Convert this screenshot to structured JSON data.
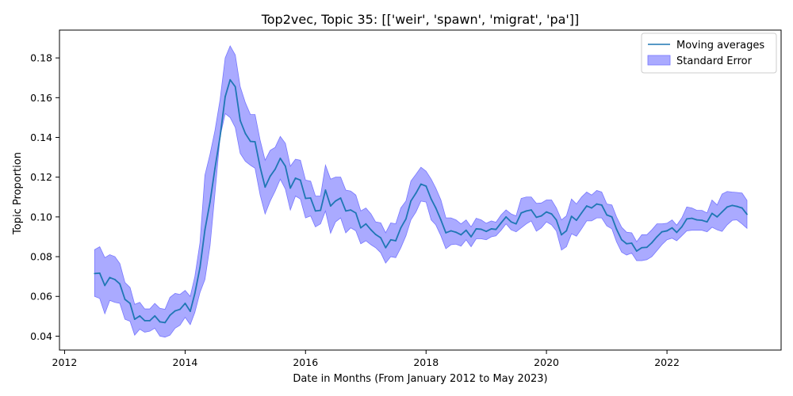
{
  "chart_data": {
    "type": "line",
    "title": "Top2vec, Topic 35: [['weir', 'spawn', 'migrat', 'pa']]",
    "xlabel": "Date in Months (From January 2012 to May 2023)",
    "ylabel": "Topic Proportion",
    "xlim": [
      "2011-12-01",
      "2023-11-24"
    ],
    "ylim": [
      0.033,
      0.194
    ],
    "x_ticks": [
      "2012",
      "2014",
      "2016",
      "2018",
      "2020",
      "2022"
    ],
    "y_ticks": [
      "0.04",
      "0.06",
      "0.08",
      "0.10",
      "0.12",
      "0.14",
      "0.16",
      "0.18"
    ],
    "legend": {
      "position": "top-right",
      "entries": [
        "Moving averages",
        "Standard Error"
      ]
    },
    "colors": {
      "line": "#1f77b4",
      "band": "#aaaaff",
      "band_edge": "#7777ff"
    },
    "x": [
      "2012-07",
      "2012-08",
      "2012-09",
      "2012-10",
      "2012-11",
      "2012-12",
      "2013-01",
      "2013-02",
      "2013-03",
      "2013-04",
      "2013-05",
      "2013-06",
      "2013-07",
      "2013-08",
      "2013-09",
      "2013-10",
      "2013-11",
      "2013-12",
      "2014-01",
      "2014-02",
      "2014-03",
      "2014-04",
      "2014-05",
      "2014-06",
      "2014-07",
      "2014-08",
      "2014-09",
      "2014-10",
      "2014-11",
      "2014-12",
      "2015-01",
      "2015-02",
      "2015-03",
      "2015-04",
      "2015-05",
      "2015-06",
      "2015-07",
      "2015-08",
      "2015-09",
      "2015-10",
      "2015-11",
      "2015-12",
      "2016-01",
      "2016-02",
      "2016-03",
      "2016-04",
      "2016-05",
      "2016-06",
      "2016-07",
      "2016-08",
      "2016-09",
      "2016-10",
      "2016-11",
      "2016-12",
      "2017-01",
      "2017-02",
      "2017-03",
      "2017-04",
      "2017-05",
      "2017-06",
      "2017-07",
      "2017-08",
      "2017-09",
      "2017-10",
      "2017-11",
      "2017-12",
      "2018-01",
      "2018-02",
      "2018-03",
      "2018-04",
      "2018-05",
      "2018-06",
      "2018-07",
      "2018-08",
      "2018-09",
      "2018-10",
      "2018-11",
      "2018-12",
      "2019-01",
      "2019-02",
      "2019-03",
      "2019-04",
      "2019-05",
      "2019-06",
      "2019-07",
      "2019-08",
      "2019-09",
      "2019-10",
      "2019-11",
      "2019-12",
      "2020-01",
      "2020-02",
      "2020-03",
      "2020-04",
      "2020-05",
      "2020-06",
      "2020-07",
      "2020-08",
      "2020-09",
      "2020-10",
      "2020-11",
      "2020-12",
      "2021-01",
      "2021-02",
      "2021-03",
      "2021-04",
      "2021-05",
      "2021-06",
      "2021-07",
      "2021-08",
      "2021-09",
      "2021-10",
      "2021-11",
      "2021-12",
      "2022-01",
      "2022-02",
      "2022-03",
      "2022-04",
      "2022-05",
      "2022-06",
      "2022-07",
      "2022-08",
      "2022-09",
      "2022-10",
      "2022-11",
      "2022-12",
      "2023-01",
      "2023-02",
      "2023-03",
      "2023-04",
      "2023-05"
    ],
    "series": [
      {
        "name": "Moving averages",
        "values": [
          0.0715,
          0.0717,
          0.0655,
          0.0695,
          0.0685,
          0.0663,
          0.0585,
          0.0565,
          0.0485,
          0.0502,
          0.0478,
          0.0478,
          0.0502,
          0.0472,
          0.0468,
          0.0505,
          0.0527,
          0.0535,
          0.0565,
          0.0525,
          0.0615,
          0.0745,
          0.0935,
          0.1075,
          0.1245,
          0.1405,
          0.1605,
          0.169,
          0.1655,
          0.1485,
          0.142,
          0.138,
          0.1378,
          0.125,
          0.115,
          0.1205,
          0.124,
          0.1295,
          0.1255,
          0.1145,
          0.1195,
          0.1185,
          0.1093,
          0.1095,
          0.103,
          0.1033,
          0.1135,
          0.1055,
          0.108,
          0.1095,
          0.103,
          0.1035,
          0.102,
          0.0945,
          0.0965,
          0.0935,
          0.0912,
          0.0895,
          0.0845,
          0.0885,
          0.088,
          0.0945,
          0.099,
          0.108,
          0.112,
          0.1165,
          0.1155,
          0.109,
          0.1045,
          0.0985,
          0.092,
          0.093,
          0.0923,
          0.091,
          0.0933,
          0.09,
          0.094,
          0.0938,
          0.0927,
          0.094,
          0.0937,
          0.097,
          0.1,
          0.0975,
          0.0965,
          0.102,
          0.103,
          0.1035,
          0.0998,
          0.1005,
          0.1025,
          0.1015,
          0.0985,
          0.091,
          0.093,
          0.1003,
          0.0983,
          0.102,
          0.1055,
          0.1045,
          0.1065,
          0.106,
          0.101,
          0.1,
          0.0938,
          0.0885,
          0.0865,
          0.0868,
          0.0828,
          0.0845,
          0.0847,
          0.087,
          0.09,
          0.0925,
          0.093,
          0.0945,
          0.0922,
          0.095,
          0.099,
          0.0993,
          0.0985,
          0.0983,
          0.0975,
          0.1018,
          0.1,
          0.1025,
          0.105,
          0.1058,
          0.1053,
          0.1045,
          0.1013
        ],
        "lower": [
          0.06,
          0.059,
          0.0513,
          0.058,
          0.057,
          0.0565,
          0.0485,
          0.0475,
          0.0405,
          0.0435,
          0.042,
          0.0425,
          0.044,
          0.04,
          0.0395,
          0.0405,
          0.044,
          0.0455,
          0.0495,
          0.0458,
          0.052,
          0.062,
          0.0685,
          0.0855,
          0.112,
          0.1405,
          0.152,
          0.15,
          0.145,
          0.132,
          0.128,
          0.126,
          0.1245,
          0.111,
          0.1015,
          0.108,
          0.113,
          0.119,
          0.114,
          0.1035,
          0.1105,
          0.109,
          0.0995,
          0.1005,
          0.095,
          0.0965,
          0.103,
          0.0918,
          0.0975,
          0.0995,
          0.092,
          0.0945,
          0.093,
          0.0865,
          0.088,
          0.086,
          0.0845,
          0.082,
          0.0768,
          0.08,
          0.0795,
          0.0845,
          0.0905,
          0.0985,
          0.1025,
          0.108,
          0.1075,
          0.0985,
          0.096,
          0.0905,
          0.084,
          0.086,
          0.0863,
          0.0853,
          0.0885,
          0.085,
          0.089,
          0.089,
          0.0885,
          0.09,
          0.0905,
          0.0933,
          0.0965,
          0.0935,
          0.0925,
          0.0945,
          0.0965,
          0.098,
          0.0928,
          0.0945,
          0.0975,
          0.096,
          0.093,
          0.0833,
          0.085,
          0.0915,
          0.0903,
          0.094,
          0.098,
          0.098,
          0.0995,
          0.0995,
          0.0955,
          0.094,
          0.0875,
          0.0823,
          0.0808,
          0.0818,
          0.078,
          0.078,
          0.0785,
          0.08,
          0.083,
          0.086,
          0.0885,
          0.0893,
          0.088,
          0.0905,
          0.093,
          0.0933,
          0.0933,
          0.0933,
          0.0925,
          0.0948,
          0.0935,
          0.0927,
          0.096,
          0.0983,
          0.0985,
          0.0965,
          0.0943
        ],
        "upper": [
          0.0835,
          0.085,
          0.0795,
          0.081,
          0.08,
          0.0765,
          0.067,
          0.0645,
          0.056,
          0.057,
          0.0537,
          0.0537,
          0.0565,
          0.054,
          0.0535,
          0.0595,
          0.0615,
          0.061,
          0.063,
          0.06,
          0.07,
          0.087,
          0.121,
          0.1315,
          0.1435,
          0.159,
          0.18,
          0.186,
          0.1815,
          0.1655,
          0.1575,
          0.1515,
          0.1515,
          0.1385,
          0.1285,
          0.1335,
          0.135,
          0.1405,
          0.137,
          0.1255,
          0.129,
          0.1285,
          0.1185,
          0.118,
          0.1105,
          0.1105,
          0.126,
          0.119,
          0.12,
          0.12,
          0.1135,
          0.113,
          0.111,
          0.103,
          0.1045,
          0.1015,
          0.0975,
          0.097,
          0.092,
          0.097,
          0.0965,
          0.1045,
          0.108,
          0.118,
          0.1215,
          0.125,
          0.123,
          0.119,
          0.1145,
          0.1085,
          0.0995,
          0.0995,
          0.0985,
          0.0965,
          0.0985,
          0.095,
          0.0993,
          0.0985,
          0.0968,
          0.098,
          0.0973,
          0.101,
          0.1035,
          0.1015,
          0.1005,
          0.1093,
          0.11,
          0.11,
          0.1068,
          0.107,
          0.1085,
          0.1085,
          0.1045,
          0.0985,
          0.1005,
          0.109,
          0.1065,
          0.11,
          0.1125,
          0.111,
          0.1133,
          0.1125,
          0.1065,
          0.106,
          0.1,
          0.0948,
          0.0923,
          0.092,
          0.0875,
          0.091,
          0.091,
          0.0935,
          0.0965,
          0.0965,
          0.0968,
          0.0985,
          0.0958,
          0.0995,
          0.105,
          0.1045,
          0.1033,
          0.1033,
          0.102,
          0.1085,
          0.106,
          0.1115,
          0.1128,
          0.1125,
          0.1123,
          0.112,
          0.1083
        ]
      }
    ]
  }
}
